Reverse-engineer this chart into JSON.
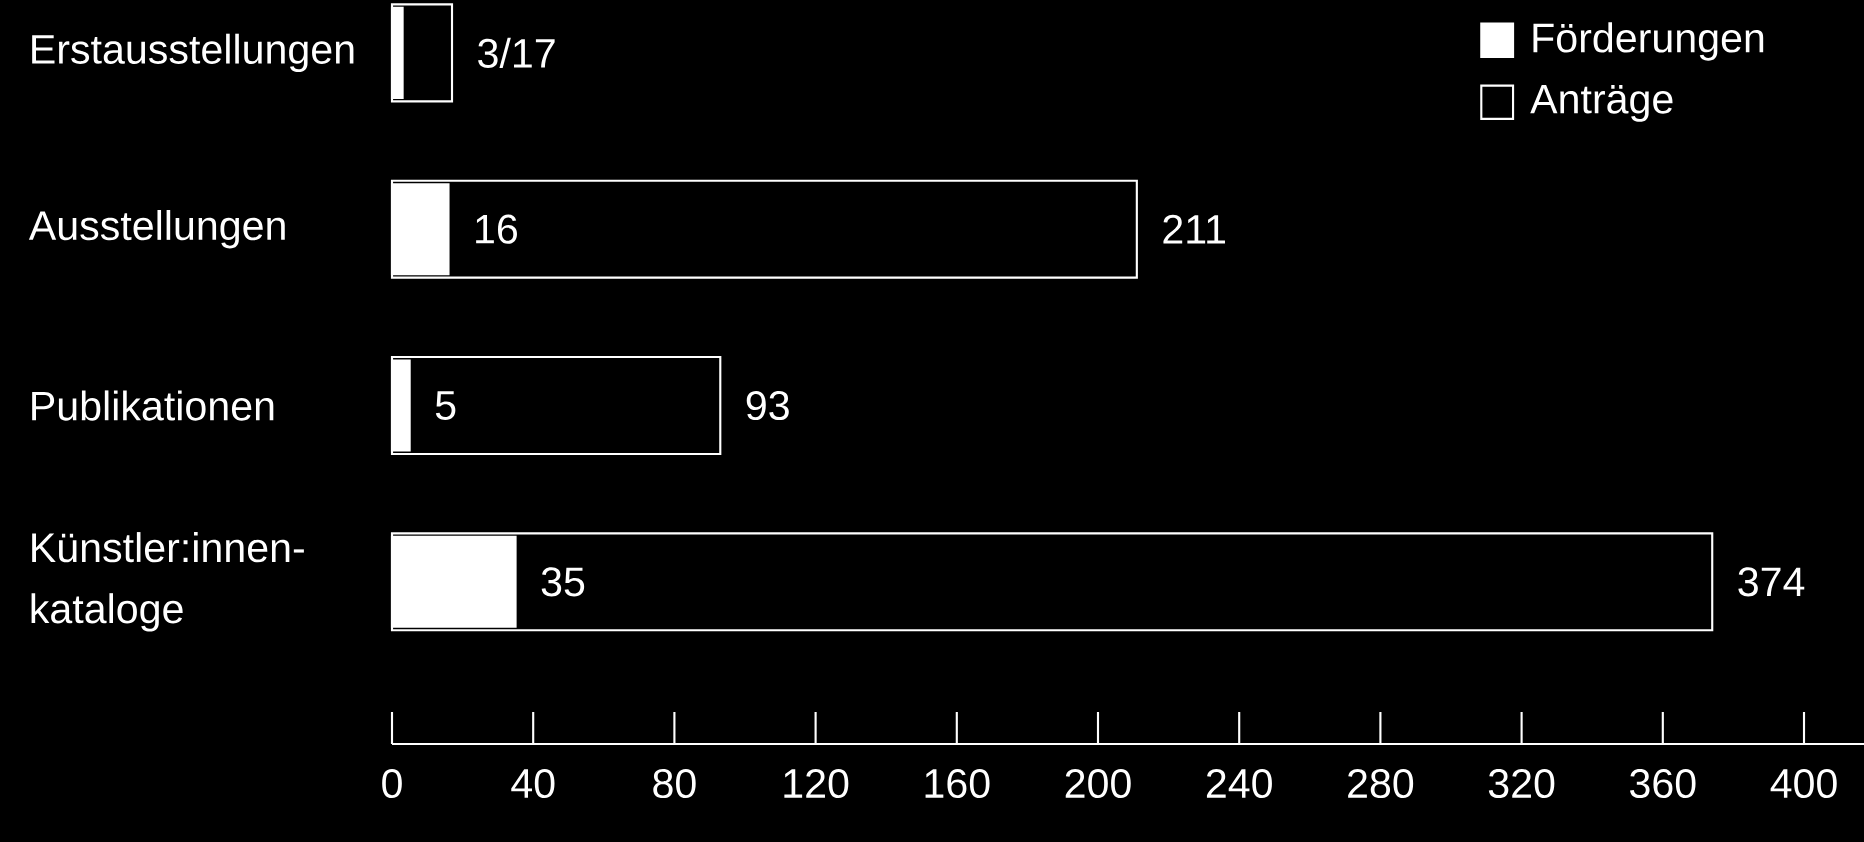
{
  "chart_data": {
    "type": "bar",
    "orientation": "horizontal",
    "categories": [
      "Erstausstellungen",
      "Ausstellungen",
      "Publikationen",
      "Künstler:innen-kataloge"
    ],
    "series": [
      {
        "name": "Förderungen",
        "color": "#ffffff",
        "values": [
          3,
          16,
          5,
          35
        ],
        "value_labels": [
          null,
          "16",
          "5",
          "35"
        ]
      },
      {
        "name": "Anträge",
        "color": "#000000",
        "values": [
          17,
          211,
          93,
          374
        ],
        "value_labels": [
          "3/17",
          "211",
          "93",
          "374"
        ]
      }
    ],
    "xlim": [
      0,
      417
    ],
    "xticks": [
      0,
      40,
      80,
      120,
      160,
      200,
      240,
      280,
      320,
      360,
      400
    ],
    "legend": "top right",
    "grid": false
  }
}
